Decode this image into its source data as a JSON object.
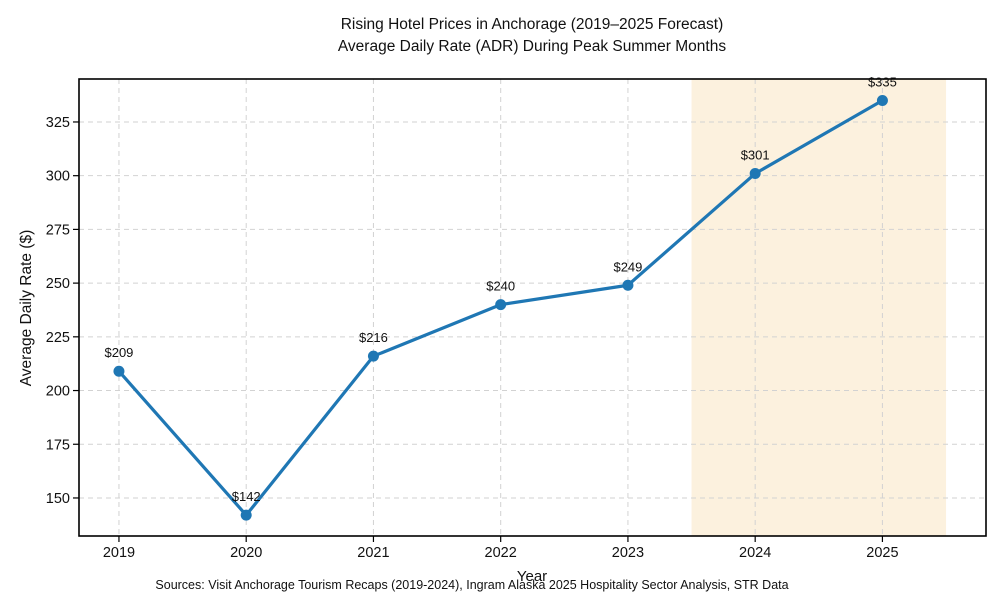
{
  "chart_data": {
    "type": "line",
    "title": "Rising Hotel Prices in Anchorage (2019–2025 Forecast)",
    "subtitle": "Average Daily Rate (ADR) During Peak Summer Months",
    "xlabel": "Year",
    "ylabel": "Average Daily Rate ($)",
    "source_note": "Sources: Visit Anchorage Tourism Recaps (2019-2024), Ingram Alaska 2025 Hospitality Sector Analysis, STR Data",
    "x": [
      2019,
      2020,
      2021,
      2022,
      2023,
      2024,
      2025
    ],
    "values": [
      209,
      142,
      216,
      240,
      249,
      301,
      335
    ],
    "point_labels": [
      "$209",
      "$142",
      "$216",
      "$240",
      "$249",
      "$301",
      "$335"
    ],
    "yticks": [
      150,
      175,
      200,
      225,
      250,
      275,
      300,
      325
    ],
    "xlim": [
      2018.686,
      2025.814
    ],
    "ylim": [
      132.3,
      345.0
    ],
    "grid": true,
    "legend_position": "none",
    "forecast_band": {
      "x_start": 2023.5,
      "x_end": 2025.5
    },
    "colors": {
      "line": "#1f77b4",
      "marker": "#1f77b4",
      "grid": "#d2d2d2",
      "band": "#fcf1de",
      "text": "#111111",
      "spine": "#000000"
    }
  }
}
